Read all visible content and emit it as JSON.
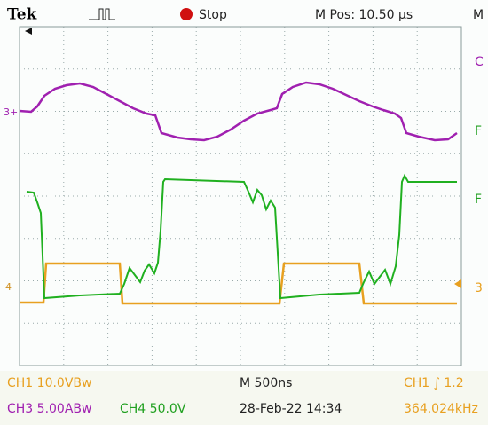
{
  "header": {
    "brand": "Tek",
    "trigger_state": "Stop",
    "horizontal_position": "M Pos: 10.50 µs",
    "right_cut": "M"
  },
  "left_markers": [
    "3+",
    "4"
  ],
  "right_markers": [
    "C",
    "F",
    "F",
    "3"
  ],
  "status": {
    "rows": [
      [
        "CH1  10.0VBw",
        "M 500ns",
        "CH1 ∫ 1.2"
      ],
      [
        "CH3  5.00ABw",
        "CH4  50.0V",
        "28-Feb-22 14:34",
        "364.024kHz"
      ]
    ]
  }
}
